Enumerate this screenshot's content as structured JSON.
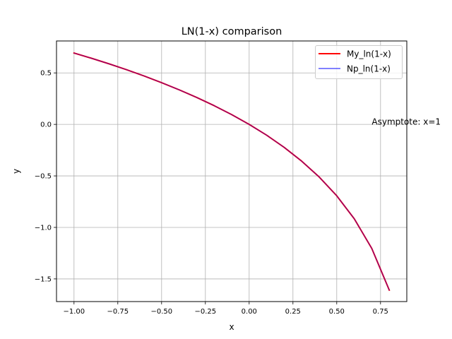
{
  "chart_data": {
    "type": "line",
    "title": "LN(1-x) comparison",
    "xlabel": "x",
    "ylabel": "y",
    "xlim": [
      -1.1,
      0.9
    ],
    "ylim": [
      -1.72,
      0.81
    ],
    "xticks": [
      -1.0,
      -0.75,
      -0.5,
      -0.25,
      0.0,
      0.25,
      0.5,
      0.75
    ],
    "xtick_labels": [
      "−1.00",
      "−0.75",
      "−0.50",
      "−0.25",
      "0.00",
      "0.25",
      "0.50",
      "0.75"
    ],
    "yticks": [
      -1.5,
      -1.0,
      -0.5,
      0.0,
      0.5
    ],
    "ytick_labels": [
      "−1.5",
      "−1.0",
      "−0.5",
      "0.0",
      "0.5"
    ],
    "grid": true,
    "legend_position": "top-right",
    "x": [
      -1.0,
      -0.9,
      -0.8,
      -0.7,
      -0.6,
      -0.5,
      -0.4,
      -0.3,
      -0.2,
      -0.1,
      0.0,
      0.1,
      0.2,
      0.3,
      0.4,
      0.5,
      0.6,
      0.7,
      0.8
    ],
    "series": [
      {
        "name": "My_ln(1-x)",
        "color": "#ff0000",
        "values": [
          0.693,
          0.642,
          0.588,
          0.531,
          0.47,
          0.405,
          0.336,
          0.262,
          0.182,
          0.095,
          0.0,
          -0.105,
          -0.223,
          -0.357,
          -0.511,
          -0.693,
          -0.916,
          -1.204,
          -1.609
        ]
      },
      {
        "name": "Np_ln(1-x)",
        "color": "#0000ff",
        "values": [
          0.693,
          0.642,
          0.588,
          0.531,
          0.47,
          0.405,
          0.336,
          0.262,
          0.182,
          0.095,
          0.0,
          -0.105,
          -0.223,
          -0.357,
          -0.511,
          -0.693,
          -0.916,
          -1.204,
          -1.609
        ]
      }
    ],
    "annotations": [
      {
        "text": "Asymptote: x=1",
        "x": 0.7,
        "y": 0.0
      }
    ]
  }
}
